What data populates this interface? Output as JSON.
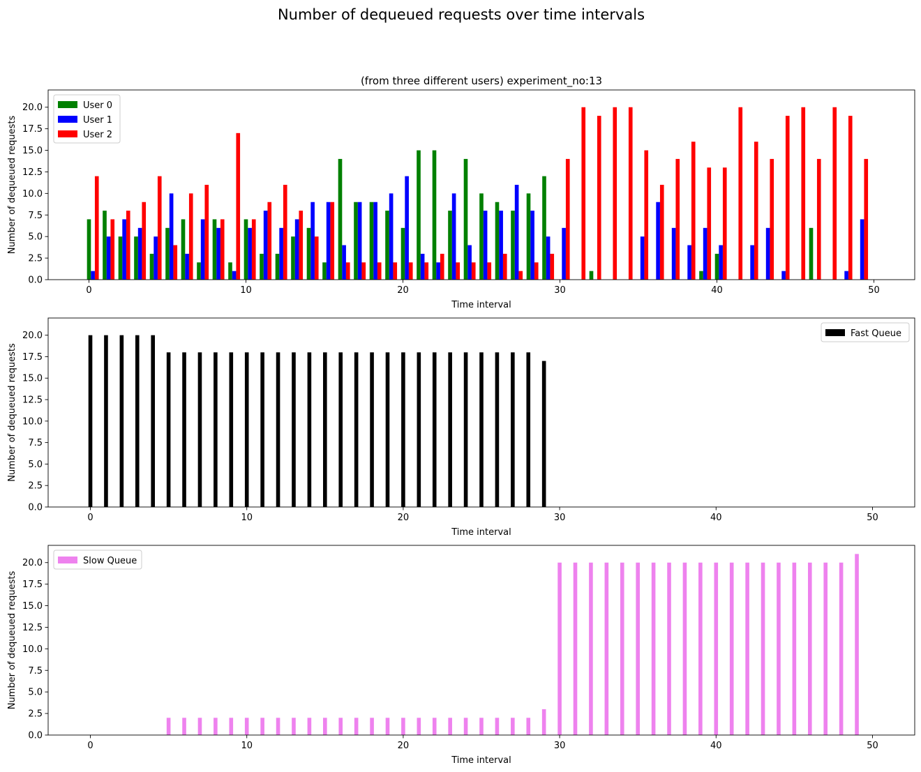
{
  "figure": {
    "suptitle": "Number of dequeued requests over time intervals"
  },
  "chart_data": [
    {
      "type": "bar",
      "title": "(from three different users) experiment_no:13",
      "xlabel": "Time interval",
      "ylabel": "Number of dequeued requests",
      "xlim": [
        -2.6,
        52.6
      ],
      "ylim": [
        0,
        22
      ],
      "xticks": [
        0,
        10,
        20,
        30,
        40,
        50
      ],
      "xtick_labels": [
        "0",
        "10",
        "20",
        "30",
        "40",
        "50"
      ],
      "yticks": [
        0,
        2.5,
        5,
        7.5,
        10,
        12.5,
        15,
        17.5,
        20
      ],
      "ytick_labels": [
        "0.0",
        "2.5",
        "5.0",
        "7.5",
        "10.0",
        "12.5",
        "15.0",
        "17.5",
        "20.0"
      ],
      "legend": "top-left",
      "bar_width": 0.25,
      "x": [
        0,
        1,
        2,
        3,
        4,
        5,
        6,
        7,
        8,
        9,
        10,
        11,
        12,
        13,
        14,
        15,
        16,
        17,
        18,
        19,
        20,
        21,
        22,
        23,
        24,
        25,
        26,
        27,
        28,
        29,
        30,
        31,
        32,
        33,
        34,
        35,
        36,
        37,
        38,
        39,
        40,
        41,
        42,
        43,
        44,
        45,
        46,
        47,
        48,
        49
      ],
      "series": [
        {
          "name": "User 0",
          "color": "#008000",
          "offset": 0,
          "values": [
            7,
            8,
            5,
            5,
            3,
            6,
            7,
            2,
            7,
            2,
            7,
            3,
            3,
            5,
            6,
            2,
            14,
            9,
            9,
            8,
            6,
            15,
            15,
            8,
            14,
            10,
            9,
            8,
            10,
            12,
            0,
            0,
            1,
            0,
            0,
            0,
            0,
            0,
            0,
            1,
            3,
            0,
            0,
            0,
            0,
            0,
            6,
            0,
            0,
            0
          ]
        },
        {
          "name": "User 1",
          "color": "#0000ff",
          "offset": 0.25,
          "values": [
            1,
            5,
            7,
            6,
            5,
            10,
            3,
            7,
            6,
            1,
            6,
            8,
            6,
            7,
            9,
            9,
            4,
            9,
            9,
            10,
            12,
            3,
            2,
            10,
            4,
            8,
            8,
            11,
            8,
            5,
            6,
            0,
            0,
            0,
            0,
            5,
            9,
            6,
            4,
            6,
            4,
            0,
            4,
            6,
            1,
            0,
            0,
            0,
            1,
            7
          ]
        },
        {
          "name": "User 2",
          "color": "#ff0000",
          "offset": 0.5,
          "values": [
            12,
            7,
            8,
            9,
            12,
            4,
            10,
            11,
            7,
            17,
            7,
            9,
            11,
            8,
            5,
            9,
            2,
            2,
            2,
            2,
            2,
            2,
            3,
            2,
            2,
            2,
            3,
            1,
            2,
            3,
            14,
            20,
            19,
            20,
            20,
            15,
            11,
            14,
            16,
            13,
            13,
            20,
            16,
            14,
            19,
            20,
            14,
            20,
            19,
            14
          ]
        }
      ]
    },
    {
      "type": "bar",
      "title": "",
      "xlabel": "Time interval",
      "ylabel": "Number of dequeued requests",
      "xlim": [
        -2.7,
        52.7
      ],
      "ylim": [
        0,
        22
      ],
      "xticks": [
        0,
        10,
        20,
        30,
        40,
        50
      ],
      "xtick_labels": [
        "0",
        "10",
        "20",
        "30",
        "40",
        "50"
      ],
      "yticks": [
        0,
        2.5,
        5,
        7.5,
        10,
        12.5,
        15,
        17.5,
        20
      ],
      "ytick_labels": [
        "0.0",
        "2.5",
        "5.0",
        "7.5",
        "10.0",
        "12.5",
        "15.0",
        "17.5",
        "20.0"
      ],
      "legend": "top-right",
      "bar_width": 0.25,
      "x": [
        0,
        1,
        2,
        3,
        4,
        5,
        6,
        7,
        8,
        9,
        10,
        11,
        12,
        13,
        14,
        15,
        16,
        17,
        18,
        19,
        20,
        21,
        22,
        23,
        24,
        25,
        26,
        27,
        28,
        29
      ],
      "series": [
        {
          "name": "Fast Queue",
          "color": "#000000",
          "offset": 0,
          "values": [
            20,
            20,
            20,
            20,
            20,
            18,
            18,
            18,
            18,
            18,
            18,
            18,
            18,
            18,
            18,
            18,
            18,
            18,
            18,
            18,
            18,
            18,
            18,
            18,
            18,
            18,
            18,
            18,
            18,
            17
          ]
        }
      ]
    },
    {
      "type": "bar",
      "title": "",
      "xlabel": "Time interval",
      "ylabel": "Number of dequeued requests",
      "xlim": [
        -2.7,
        52.7
      ],
      "ylim": [
        0,
        22
      ],
      "xticks": [
        0,
        10,
        20,
        30,
        40,
        50
      ],
      "xtick_labels": [
        "0",
        "10",
        "20",
        "30",
        "40",
        "50"
      ],
      "yticks": [
        0,
        2.5,
        5,
        7.5,
        10,
        12.5,
        15,
        17.5,
        20
      ],
      "ytick_labels": [
        "0.0",
        "2.5",
        "5.0",
        "7.5",
        "10.0",
        "12.5",
        "15.0",
        "17.5",
        "20.0"
      ],
      "legend": "top-left",
      "bar_width": 0.25,
      "x": [
        5,
        6,
        7,
        8,
        9,
        10,
        11,
        12,
        13,
        14,
        15,
        16,
        17,
        18,
        19,
        20,
        21,
        22,
        23,
        24,
        25,
        26,
        27,
        28,
        29,
        30,
        31,
        32,
        33,
        34,
        35,
        36,
        37,
        38,
        39,
        40,
        41,
        42,
        43,
        44,
        45,
        46,
        47,
        48,
        49
      ],
      "series": [
        {
          "name": "Slow Queue",
          "color": "#ee82ee",
          "offset": 0,
          "values": [
            2,
            2,
            2,
            2,
            2,
            2,
            2,
            2,
            2,
            2,
            2,
            2,
            2,
            2,
            2,
            2,
            2,
            2,
            2,
            2,
            2,
            2,
            2,
            2,
            3,
            20,
            20,
            20,
            20,
            20,
            20,
            20,
            20,
            20,
            20,
            20,
            20,
            20,
            20,
            20,
            20,
            20,
            20,
            20,
            21
          ]
        }
      ]
    }
  ]
}
